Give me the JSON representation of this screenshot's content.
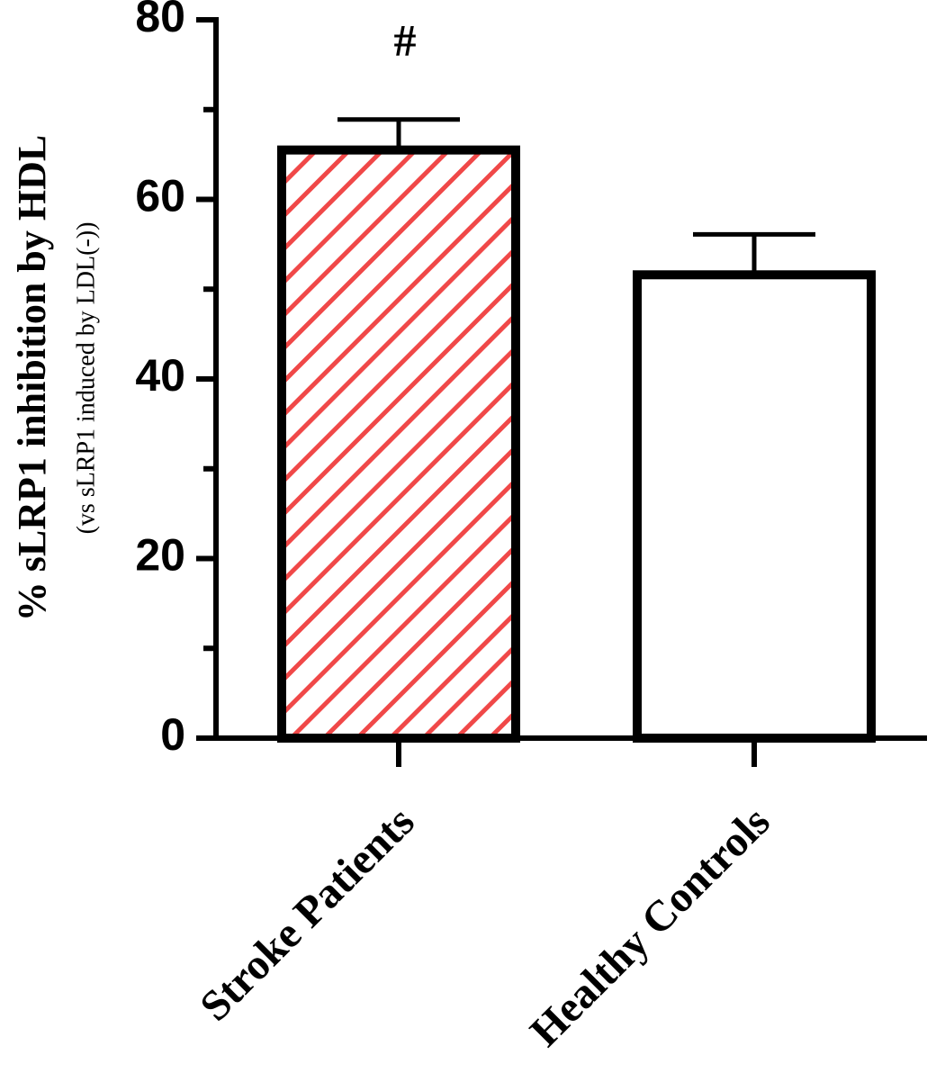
{
  "chart_data": {
    "type": "bar",
    "ylabel": "% sLRP1 inhibition by HDL",
    "ylabel_sub": "(vs sLRP1 induced by LDL(-))",
    "categories": [
      "Stroke Patients",
      "Healthy Controls"
    ],
    "values": [
      65.5,
      51.6
    ],
    "errors": [
      3.4,
      4.5
    ],
    "colors": [
      "#f04848",
      "#ffffff"
    ],
    "hatch": [
      true,
      false
    ],
    "annotations": [
      "#",
      null
    ],
    "ylim": [
      0,
      80
    ],
    "yticks": [
      0,
      20,
      40,
      60,
      80
    ],
    "yminorticks": [
      10,
      30,
      50,
      70
    ]
  }
}
